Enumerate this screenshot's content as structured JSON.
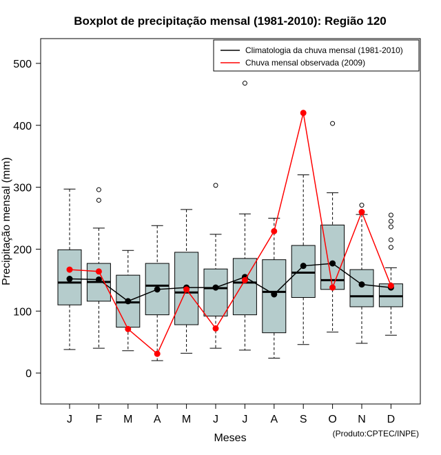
{
  "chart_data": {
    "type": "boxplot",
    "title": "Boxplot de precipitação mensal (1981-2010): Região 120",
    "xlabel": "Meses",
    "ylabel": "Precipitação mensal (mm)",
    "ylim": [
      -50,
      540
    ],
    "yticks": [
      0,
      100,
      200,
      300,
      400,
      500
    ],
    "categories": [
      "J",
      "F",
      "M",
      "A",
      "M",
      "J",
      "J",
      "A",
      "S",
      "O",
      "N",
      "D"
    ],
    "box_color": "#b5cccc",
    "boxes": [
      {
        "month": "J",
        "whisker_low": 38,
        "q1": 110,
        "median": 146,
        "q3": 199,
        "whisker_high": 297,
        "outliers": []
      },
      {
        "month": "F",
        "whisker_low": 40,
        "q1": 116,
        "median": 147,
        "q3": 177,
        "whisker_high": 234,
        "outliers": [
          279,
          296
        ]
      },
      {
        "month": "M",
        "whisker_low": 36,
        "q1": 74,
        "median": 114,
        "q3": 158,
        "whisker_high": 198,
        "outliers": []
      },
      {
        "month": "A",
        "whisker_low": 20,
        "q1": 94,
        "median": 141,
        "q3": 177,
        "whisker_high": 238,
        "outliers": []
      },
      {
        "month": "M",
        "whisker_low": 32,
        "q1": 78,
        "median": 130,
        "q3": 195,
        "whisker_high": 264,
        "outliers": []
      },
      {
        "month": "J",
        "whisker_low": 40,
        "q1": 92,
        "median": 137,
        "q3": 168,
        "whisker_high": 224,
        "outliers": [
          303
        ]
      },
      {
        "month": "J",
        "whisker_low": 37,
        "q1": 94,
        "median": 146,
        "q3": 185,
        "whisker_high": 257,
        "outliers": [
          468
        ]
      },
      {
        "month": "A",
        "whisker_low": 24,
        "q1": 65,
        "median": 131,
        "q3": 183,
        "whisker_high": 250,
        "outliers": []
      },
      {
        "month": "S",
        "whisker_low": 46,
        "q1": 122,
        "median": 162,
        "q3": 206,
        "whisker_high": 320,
        "outliers": []
      },
      {
        "month": "O",
        "whisker_low": 66,
        "q1": 135,
        "median": 150,
        "q3": 239,
        "whisker_high": 291,
        "outliers": [
          403
        ]
      },
      {
        "month": "N",
        "whisker_low": 48,
        "q1": 107,
        "median": 124,
        "q3": 167,
        "whisker_high": 256,
        "outliers": [
          271
        ]
      },
      {
        "month": "D",
        "whisker_low": 61,
        "q1": 107,
        "median": 124,
        "q3": 144,
        "whisker_high": 170,
        "outliers": [
          203,
          215,
          236,
          245,
          255
        ]
      }
    ],
    "series": [
      {
        "name": "Climatologia da chuva mensal (1981-2010)",
        "color": "#000000",
        "values": [
          152,
          151,
          116,
          135,
          138,
          138,
          155,
          127,
          173,
          177,
          143,
          138
        ]
      },
      {
        "name": "Chuva mensal observada (2009)",
        "color": "#ff0000",
        "values": [
          167,
          164,
          71,
          31,
          135,
          72,
          150,
          229,
          420,
          138,
          260,
          141
        ]
      }
    ],
    "legend_position": "top-right",
    "credit": "(Produto:CPTEC/INPE)"
  }
}
